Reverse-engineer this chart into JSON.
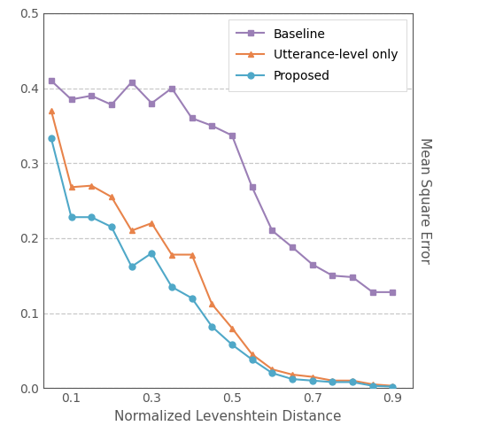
{
  "baseline_x": [
    0.05,
    0.1,
    0.15,
    0.2,
    0.25,
    0.3,
    0.35,
    0.4,
    0.45,
    0.5,
    0.55,
    0.6,
    0.65,
    0.7,
    0.75,
    0.8,
    0.85,
    0.9
  ],
  "baseline_y": [
    0.41,
    0.385,
    0.39,
    0.378,
    0.408,
    0.38,
    0.4,
    0.36,
    0.35,
    0.337,
    0.268,
    0.21,
    0.188,
    0.165,
    0.15,
    0.148,
    0.128,
    0.128
  ],
  "utterance_x": [
    0.05,
    0.1,
    0.15,
    0.2,
    0.25,
    0.3,
    0.35,
    0.4,
    0.45,
    0.5,
    0.55,
    0.6,
    0.65,
    0.7,
    0.75,
    0.8,
    0.85,
    0.9
  ],
  "utterance_y": [
    0.37,
    0.268,
    0.27,
    0.255,
    0.21,
    0.22,
    0.178,
    0.178,
    0.112,
    0.08,
    0.045,
    0.025,
    0.018,
    0.015,
    0.01,
    0.01,
    0.005,
    0.003
  ],
  "proposed_x": [
    0.05,
    0.1,
    0.15,
    0.2,
    0.25,
    0.3,
    0.35,
    0.4,
    0.45,
    0.5,
    0.55,
    0.6,
    0.65,
    0.7,
    0.75,
    0.8,
    0.85,
    0.9
  ],
  "proposed_y": [
    0.333,
    0.228,
    0.228,
    0.215,
    0.162,
    0.18,
    0.135,
    0.12,
    0.082,
    0.058,
    0.038,
    0.02,
    0.012,
    0.01,
    0.008,
    0.008,
    0.003,
    0.002
  ],
  "baseline_color": "#9b7fb6",
  "utterance_color": "#e8834a",
  "proposed_color": "#4fa8c8",
  "xlabel": "Normalized Levenshtein Distance",
  "ylabel": "Mean Square Error",
  "xlim": [
    0.03,
    0.95
  ],
  "ylim": [
    0.0,
    0.5
  ],
  "yticks": [
    0.0,
    0.1,
    0.2,
    0.3,
    0.4,
    0.5
  ],
  "xticks": [
    0.1,
    0.3,
    0.5,
    0.7,
    0.9
  ],
  "legend_labels": [
    "Baseline",
    "Utterance-level only",
    "Proposed"
  ]
}
